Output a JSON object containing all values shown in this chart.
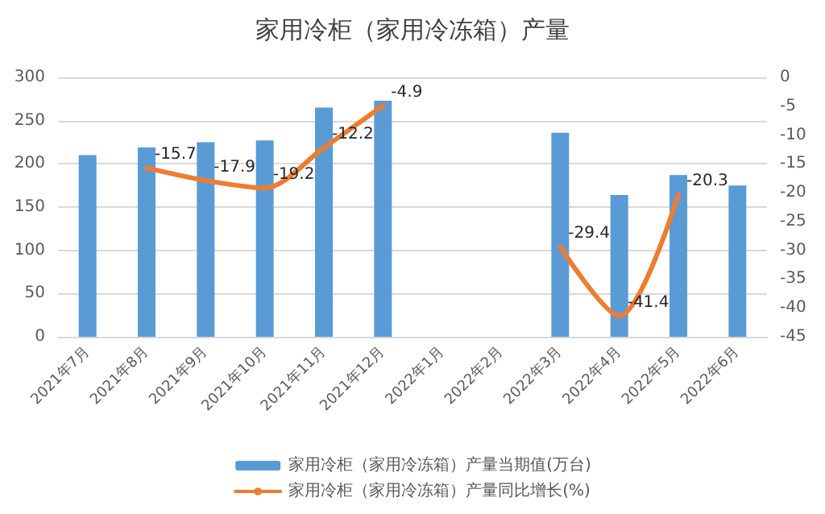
{
  "chart_data": {
    "type": "bar",
    "title": "家用冷柜（家用冷冻箱）产量",
    "categories": [
      "2021年7月",
      "2021年8月",
      "2021年9月",
      "2021年10月",
      "2021年11月",
      "2021年12月",
      "2022年1月",
      "2022年2月",
      "2022年3月",
      "2022年4月",
      "2022年5月",
      "2022年6月"
    ],
    "series": [
      {
        "name": "家用冷柜（家用冷冻箱）产量当期值(万台)",
        "color": "#5b9bd5",
        "values": [
          210,
          219,
          225,
          227,
          265,
          273,
          null,
          null,
          236,
          164,
          187,
          175
        ]
      },
      {
        "name": "家用冷柜（家用冷冻箱）产量同比增长(%)",
        "type": "line",
        "axis": "y2",
        "color": "#ed7d31",
        "values": [
          null,
          -15.7,
          -17.9,
          -19.2,
          -12.2,
          -4.9,
          null,
          null,
          -29.4,
          -41.4,
          -20.3,
          null
        ],
        "value_labels": [
          null,
          "-15.7",
          "-17.9",
          "-19.2",
          "-12.2",
          "-4.9",
          null,
          null,
          "-29.4",
          "-41.4",
          "-20.3",
          null
        ]
      }
    ],
    "ylim": [
      0,
      300
    ],
    "yticks": [
      0,
      50,
      100,
      150,
      200,
      250,
      300
    ],
    "y2lim": [
      -45,
      0
    ],
    "y2ticks": [
      -45,
      -40,
      -35,
      -30,
      -25,
      -20,
      -15,
      -10,
      -5,
      0
    ],
    "grid": "y",
    "legend": "bottom",
    "marker": "none",
    "line_style": "solid"
  }
}
